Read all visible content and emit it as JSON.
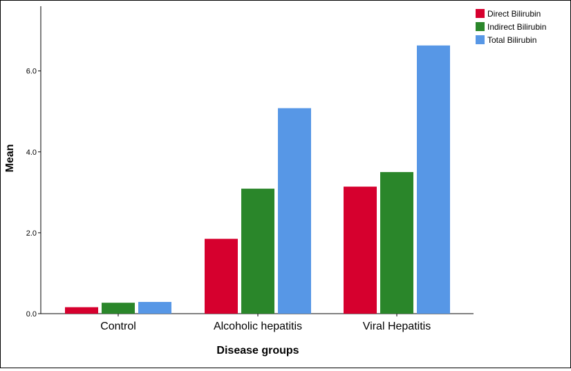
{
  "chart_data": {
    "type": "bar",
    "title": "",
    "xlabel": "Disease groups",
    "ylabel": "Mean",
    "categories": [
      "Control",
      "Alcoholic hepatitis",
      "Viral Hepatitis"
    ],
    "series": [
      {
        "name": "Direct Bilirubin",
        "color": "#d6002e",
        "values": [
          0.16,
          1.85,
          3.14
        ]
      },
      {
        "name": "Indirect Bilirubin",
        "color": "#2a862a",
        "values": [
          0.27,
          3.09,
          3.5
        ]
      },
      {
        "name": "Total Bilirubin",
        "color": "#5797e6",
        "values": [
          0.29,
          5.08,
          6.63
        ]
      }
    ],
    "ylim": [
      0,
      7.6
    ],
    "yticks": [
      0.0,
      2.0,
      4.0,
      6.0
    ],
    "ytick_labels": [
      "0.0",
      "2.0",
      "4.0",
      "6.0"
    ],
    "grid": false,
    "legend_position": "top-right"
  }
}
